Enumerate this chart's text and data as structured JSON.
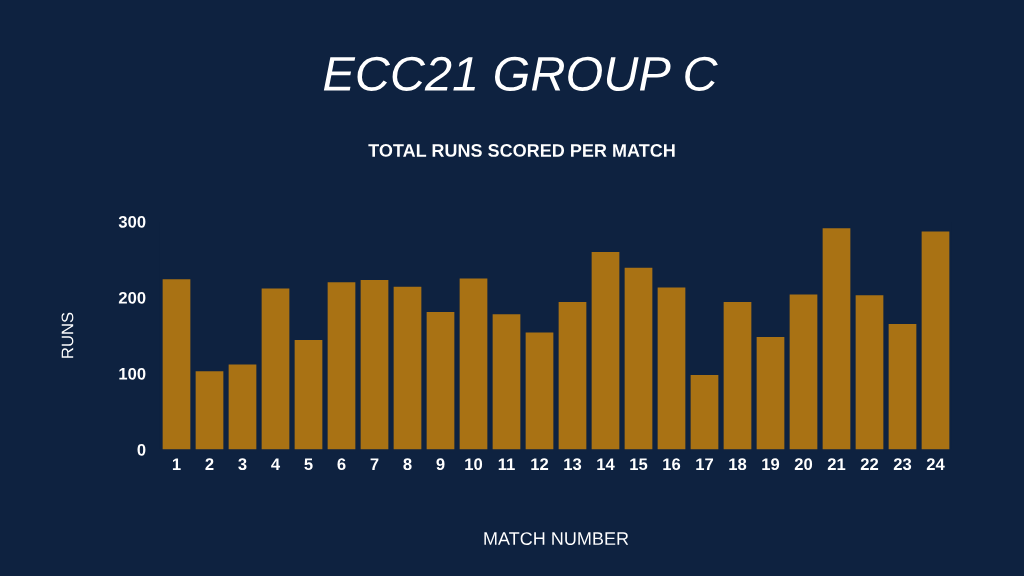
{
  "chart_data": {
    "type": "bar",
    "title": "ECC21 GROUP C",
    "subtitle": "TOTAL RUNS SCORED PER MATCH",
    "xlabel": "MATCH NUMBER",
    "ylabel": "RUNS",
    "categories": [
      "1",
      "2",
      "3",
      "4",
      "5",
      "6",
      "7",
      "8",
      "9",
      "10",
      "11",
      "12",
      "13",
      "14",
      "15",
      "16",
      "17",
      "18",
      "19",
      "20",
      "21",
      "22",
      "23",
      "24"
    ],
    "values": [
      224,
      103,
      112,
      212,
      144,
      220,
      223,
      214,
      181,
      225,
      178,
      154,
      194,
      260,
      239,
      213,
      98,
      194,
      148,
      204,
      291,
      203,
      165,
      287
    ],
    "color": "#a97214",
    "ylim": [
      0,
      300
    ],
    "yticks": [
      0,
      100,
      200,
      300
    ],
    "grid": false,
    "legend": false
  }
}
